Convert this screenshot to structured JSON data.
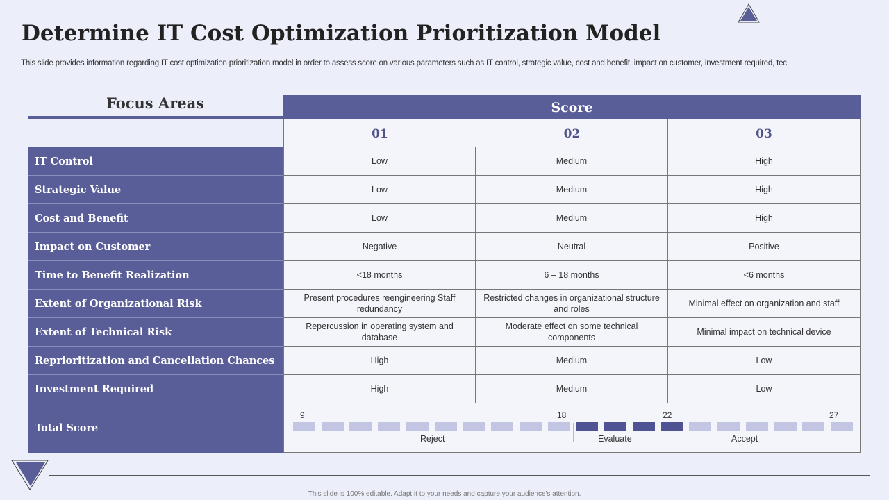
{
  "title": "Determine IT Cost Optimization Prioritization Model",
  "subtitle": "This slide provides information regarding IT cost optimization prioritization model in order to assess score on various parameters such as IT control, strategic value, cost and benefit, impact on customer, investment required, tec.",
  "table": {
    "focus_header": "Focus Areas",
    "score_header": "Score",
    "columns": [
      "01",
      "02",
      "03"
    ],
    "rows": [
      {
        "label": "IT Control",
        "cells": [
          "Low",
          "Medium",
          "High"
        ]
      },
      {
        "label": "Strategic Value",
        "cells": [
          "Low",
          "Medium",
          "High"
        ]
      },
      {
        "label": "Cost and Benefit",
        "cells": [
          "Low",
          "Medium",
          "High"
        ]
      },
      {
        "label": "Impact on Customer",
        "cells": [
          "Negative",
          "Neutral",
          "Positive"
        ]
      },
      {
        "label": "Time to Benefit Realization",
        "cells": [
          "<18 months",
          "6 – 18 months",
          "<6 months"
        ]
      },
      {
        "label": "Extent of Organizational Risk",
        "cells": [
          "Present procedures reengineering Staff redundancy",
          "Restricted changes in organizational structure and roles",
          "Minimal effect on organization and staff"
        ]
      },
      {
        "label": "Extent of Technical Risk",
        "cells": [
          "Repercussion in operating system and database",
          "Moderate effect on some technical components",
          "Minimal impact on technical device"
        ]
      },
      {
        "label": "Reprioritization and Cancellation Chances",
        "cells": [
          "High",
          "Medium",
          "Low"
        ]
      },
      {
        "label": "Investment Required",
        "cells": [
          "High",
          "Medium",
          "Low"
        ]
      }
    ],
    "total": {
      "label": "Total Score",
      "ticks": [
        "9",
        "18",
        "22",
        "27"
      ],
      "zones": [
        "Reject",
        "Evaluate",
        "Accept"
      ]
    }
  },
  "footer": "This slide is 100% editable. Adapt it to your needs and capture your audience's attention."
}
